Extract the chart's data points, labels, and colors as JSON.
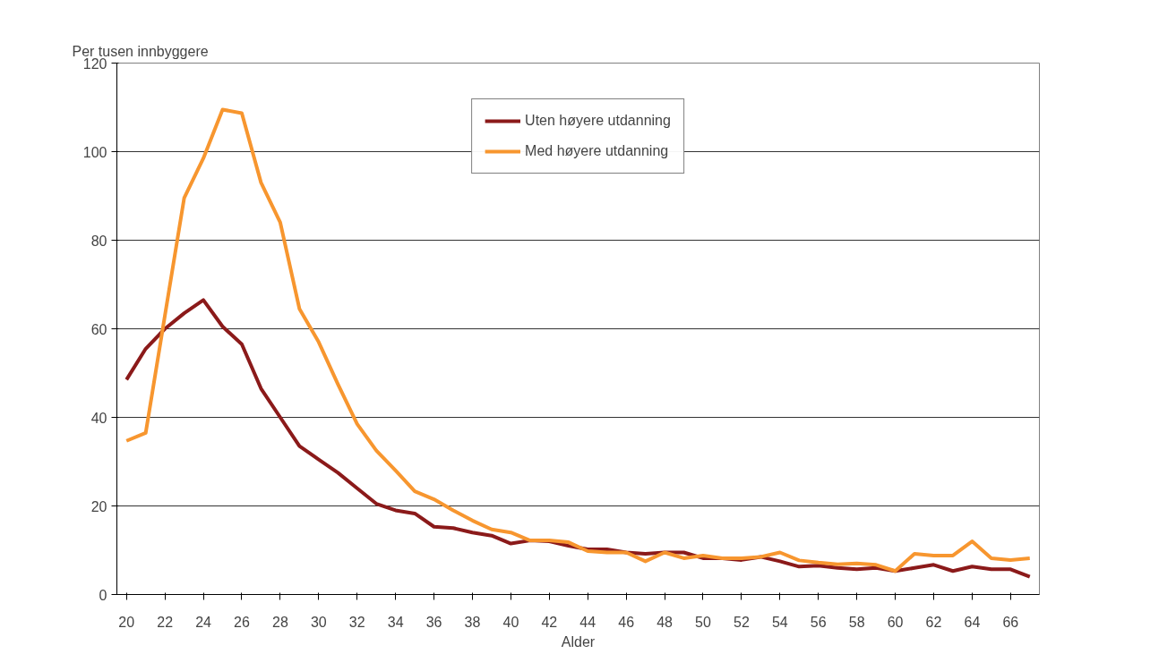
{
  "chart_data": {
    "type": "line",
    "ylabel": "Per tusen innbyggere",
    "xlabel": "Alder",
    "x": [
      20,
      21,
      22,
      23,
      24,
      25,
      26,
      27,
      28,
      29,
      30,
      31,
      32,
      33,
      34,
      35,
      36,
      37,
      38,
      39,
      40,
      41,
      42,
      43,
      44,
      45,
      46,
      47,
      48,
      49,
      50,
      51,
      52,
      53,
      54,
      55,
      56,
      57,
      58,
      59,
      60,
      61,
      62,
      63,
      64,
      65,
      66,
      67
    ],
    "series": [
      {
        "name": "Uten høyere utdanning",
        "color": "#8b1a1a",
        "values": [
          48.5,
          55.5,
          60,
          63.5,
          66.5,
          60.5,
          56.5,
          46.5,
          40,
          33.5,
          30.5,
          27.5,
          24,
          20.5,
          19,
          18.3,
          15.3,
          15,
          14,
          13.3,
          11.5,
          12.2,
          12,
          11,
          10.2,
          10.2,
          9.5,
          9.2,
          9.5,
          9.5,
          8.2,
          8.2,
          7.8,
          8.5,
          7.5,
          6.3,
          6.5,
          6,
          5.7,
          6,
          5.3,
          6,
          6.7,
          5.3,
          6.3,
          5.7,
          5.7,
          4
        ]
      },
      {
        "name": "Med høyere utdanning",
        "color": "#f7962f",
        "values": [
          34.7,
          36.5,
          63,
          89.5,
          98.5,
          109.5,
          108.7,
          93,
          84,
          64.5,
          57,
          47.5,
          38.5,
          32.5,
          28,
          23.3,
          21.5,
          19,
          16.7,
          14.7,
          14,
          12.2,
          12.2,
          11.8,
          9.8,
          9.5,
          9.5,
          7.5,
          9.5,
          8.2,
          8.8,
          8.2,
          8.2,
          8.5,
          9.5,
          7.7,
          7.2,
          6.8,
          7,
          6.7,
          5.3,
          9.2,
          8.8,
          8.8,
          12,
          8.2,
          7.8,
          8.2
        ]
      }
    ],
    "xlim": [
      19.5,
      67.5
    ],
    "xticks": [
      20,
      22,
      24,
      26,
      28,
      30,
      32,
      34,
      36,
      38,
      40,
      42,
      44,
      46,
      48,
      50,
      52,
      54,
      56,
      58,
      60,
      62,
      64,
      66
    ],
    "ylim": [
      0,
      120
    ],
    "yticks": [
      0,
      20,
      40,
      60,
      80,
      100,
      120
    ],
    "grid": "y",
    "legend": "top",
    "marker": "none",
    "line_style": "solid"
  }
}
